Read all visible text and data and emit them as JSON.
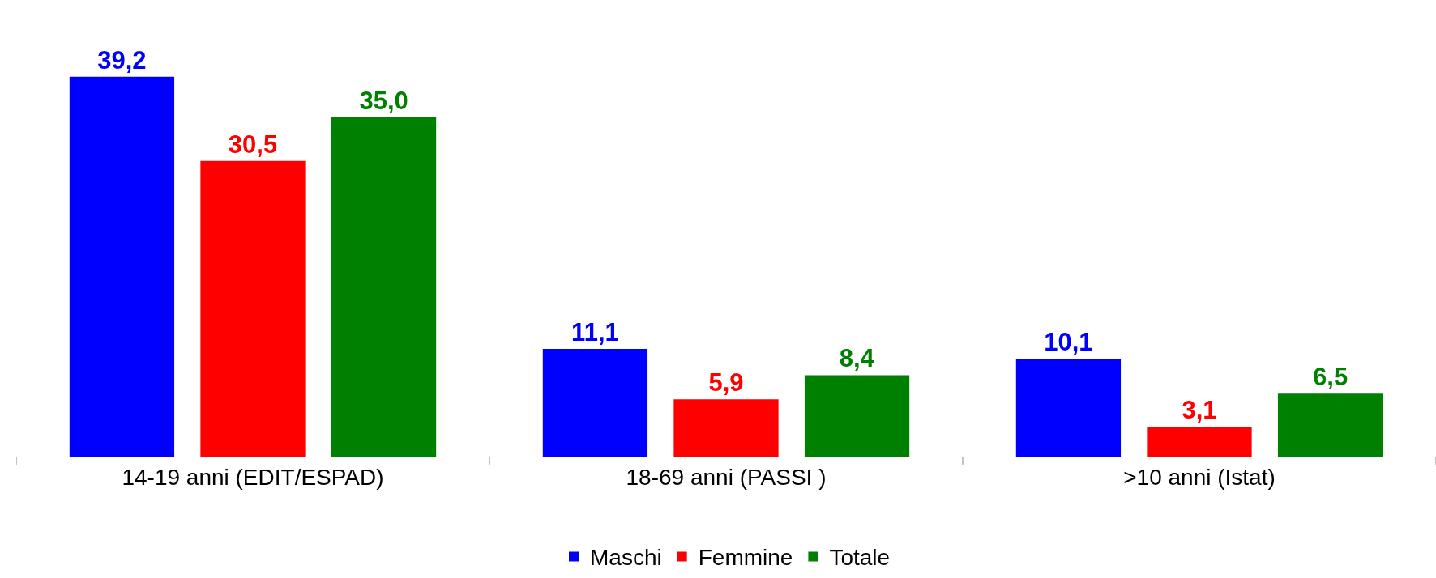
{
  "chart_data": {
    "type": "bar",
    "categories": [
      "14-19 anni (EDIT/ESPAD)",
      "18-69 anni (PASSI )",
      ">10 anni (Istat)"
    ],
    "series": [
      {
        "name": "Maschi",
        "color": "#0000ff",
        "values": [
          39.2,
          11.1,
          10.1
        ],
        "value_labels": [
          "39,2",
          "11,1",
          "10,1"
        ]
      },
      {
        "name": "Femmine",
        "color": "#ff0000",
        "values": [
          30.5,
          5.9,
          3.1
        ],
        "value_labels": [
          "30,5",
          "5,9",
          "3,1"
        ]
      },
      {
        "name": "Totale",
        "color": "#008000",
        "values": [
          35.0,
          8.4,
          6.5
        ],
        "value_labels": [
          "35,0",
          "8,4",
          "6,5"
        ]
      }
    ],
    "legend": "bottom"
  }
}
